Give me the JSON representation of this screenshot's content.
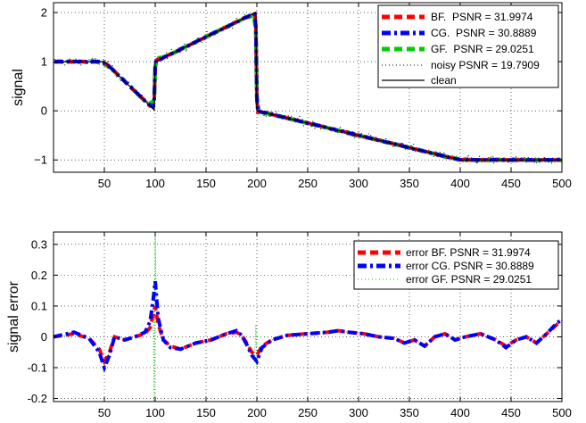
{
  "chart_data": [
    {
      "type": "line",
      "ylabel": "signal",
      "xlim": [
        0,
        500
      ],
      "ylim": [
        -1.25,
        2.2
      ],
      "xticks": [
        50,
        100,
        150,
        200,
        250,
        300,
        350,
        400,
        450,
        500
      ],
      "yticks": [
        -1,
        0,
        1,
        2
      ],
      "grid": "dotted",
      "legend_position": "top-right",
      "clean_signal": {
        "x": [
          0,
          50,
          99,
          100,
          199,
          200,
          400,
          500
        ],
        "y": [
          1,
          1,
          0.02,
          1,
          2,
          0,
          -1,
          -1
        ]
      },
      "series": [
        {
          "name": "BF.  PSNR = 31.9974",
          "color": "#ff0000",
          "style": "dashed",
          "smoothing": 5,
          "jump": 1
        },
        {
          "name": "CG.  PSNR = 30.8889",
          "color": "#0000ff",
          "style": "dashdot",
          "smoothing": 6,
          "jump": 1
        },
        {
          "name": "GF.  PSNR = 29.0251",
          "color": "#00cc00",
          "style": "dashed",
          "smoothing": 10,
          "jump": 2
        },
        {
          "name": "noisy PSNR = 19.7909",
          "color": "#000000",
          "style": "noisy-dots",
          "noise_sd": 0.07
        },
        {
          "name": "clean",
          "color": "#000000",
          "style": "solid"
        }
      ]
    },
    {
      "type": "line",
      "ylabel": "signal error",
      "xlim": [
        0,
        500
      ],
      "ylim": [
        -0.21,
        0.34
      ],
      "xticks": [
        50,
        100,
        150,
        200,
        250,
        300,
        350,
        400,
        450,
        500
      ],
      "yticks": [
        -0.2,
        -0.1,
        0,
        0.1,
        0.2,
        0.3
      ],
      "ytick_labels": [
        "-0.2",
        "-0.1",
        "0",
        "0.1",
        "0.2",
        "0.3"
      ],
      "grid": "dotted",
      "legend_position": "top-right",
      "series": [
        {
          "name": "error BF. PSNR = 31.9974",
          "color": "#ff0000",
          "style": "dashed",
          "x": [
            0,
            20,
            35,
            45,
            50,
            55,
            60,
            70,
            80,
            90,
            95,
            98,
            100,
            103,
            108,
            115,
            125,
            140,
            155,
            170,
            180,
            185,
            190,
            195,
            200,
            205,
            215,
            230,
            250,
            270,
            280,
            290,
            305,
            320,
            335,
            345,
            355,
            365,
            375,
            385,
            395,
            405,
            420,
            435,
            445,
            455,
            465,
            475,
            485,
            495,
            500
          ],
          "y": [
            0,
            0.01,
            -0.005,
            -0.04,
            -0.08,
            -0.05,
            0,
            -0.01,
            0,
            0.01,
            0.03,
            0.07,
            0.1,
            0.04,
            -0.01,
            -0.03,
            -0.04,
            -0.02,
            -0.01,
            0.01,
            0.015,
            0.005,
            -0.02,
            -0.05,
            -0.06,
            -0.03,
            -0.01,
            0.005,
            0.01,
            0.015,
            0.02,
            0.015,
            0.01,
            0.0,
            -0.005,
            -0.02,
            -0.01,
            -0.03,
            0.0,
            0.01,
            -0.01,
            0.0,
            0.01,
            -0.01,
            -0.03,
            -0.01,
            0.0,
            -0.02,
            0.01,
            0.04,
            0.05
          ]
        },
        {
          "name": "error CG. PSNR = 30.8889",
          "color": "#0000ff",
          "style": "dashdot",
          "x": [
            0,
            20,
            35,
            45,
            50,
            55,
            60,
            70,
            80,
            90,
            95,
            98,
            100,
            103,
            108,
            115,
            125,
            140,
            155,
            170,
            180,
            185,
            190,
            195,
            200,
            205,
            215,
            230,
            250,
            270,
            280,
            290,
            305,
            320,
            335,
            345,
            355,
            365,
            375,
            385,
            395,
            405,
            420,
            435,
            445,
            455,
            465,
            475,
            485,
            495,
            500
          ],
          "y": [
            0,
            0.015,
            -0.005,
            -0.05,
            -0.1,
            -0.06,
            0,
            -0.01,
            0,
            0.015,
            0.05,
            0.12,
            0.18,
            0.06,
            -0.01,
            -0.035,
            -0.04,
            -0.02,
            -0.01,
            0.01,
            0.02,
            0.005,
            -0.025,
            -0.06,
            -0.08,
            -0.035,
            -0.01,
            0.005,
            0.01,
            0.015,
            0.02,
            0.015,
            0.01,
            0.0,
            -0.005,
            -0.02,
            -0.01,
            -0.03,
            0.0,
            0.01,
            -0.01,
            0.0,
            0.01,
            -0.01,
            -0.035,
            -0.01,
            0.0,
            -0.02,
            0.01,
            0.045,
            0.055
          ]
        },
        {
          "name": "error GF. PSNR = 29.0251",
          "color": "#00cc00",
          "style": "dotted",
          "x": [
            0,
            20,
            35,
            45,
            50,
            55,
            60,
            70,
            80,
            90,
            95,
            98,
            99,
            100,
            101,
            103,
            108,
            115,
            125,
            140,
            155,
            170,
            180,
            185,
            190,
            195,
            198,
            199,
            200,
            201,
            205,
            215,
            230,
            250,
            270,
            280,
            290,
            305,
            320,
            335,
            345,
            355,
            365,
            375,
            385,
            395,
            405,
            420,
            435,
            445,
            455,
            465,
            475,
            485,
            495,
            500
          ],
          "y": [
            0,
            0.01,
            -0.005,
            -0.04,
            -0.08,
            -0.05,
            0,
            -0.01,
            0,
            0.01,
            0.04,
            0.1,
            -0.21,
            0.33,
            0.12,
            0.04,
            -0.01,
            -0.03,
            -0.04,
            -0.02,
            -0.01,
            0.01,
            0.015,
            0.005,
            -0.02,
            -0.05,
            -0.06,
            0.04,
            -0.1,
            -0.04,
            -0.03,
            -0.01,
            0.005,
            0.01,
            0.015,
            0.02,
            0.015,
            0.01,
            0.0,
            -0.005,
            -0.02,
            -0.01,
            -0.03,
            0.0,
            0.01,
            -0.01,
            0.0,
            0.01,
            -0.01,
            -0.03,
            -0.01,
            0.0,
            -0.02,
            0.01,
            0.04,
            0.05
          ]
        }
      ]
    }
  ]
}
